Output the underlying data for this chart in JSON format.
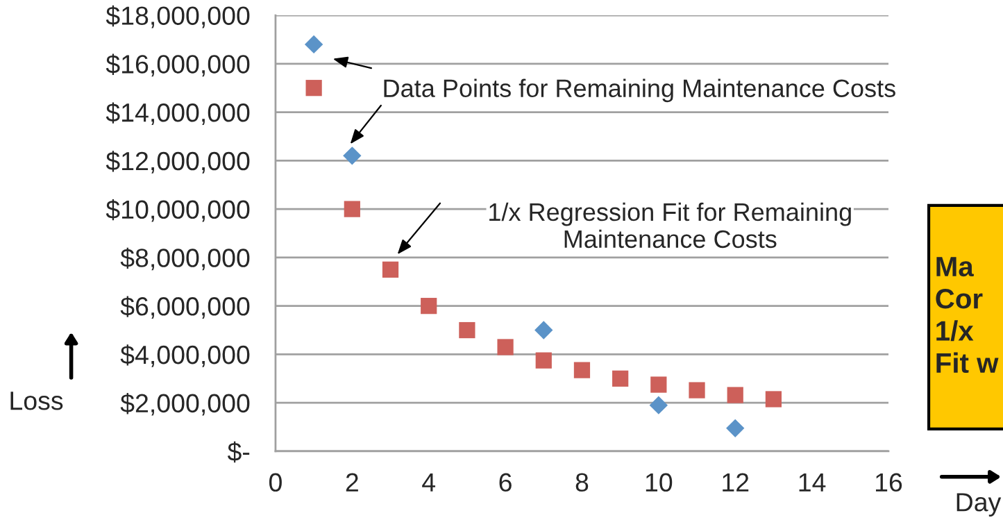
{
  "chart_data": {
    "type": "scatter",
    "xlabel": "Day",
    "ylabel": "Loss",
    "series": [
      {
        "color": "#5b93c8",
        "marker": "diamond",
        "x": [
          1,
          2,
          7,
          10,
          12
        ],
        "values": [
          16800000,
          12200000,
          5000000,
          1900000,
          950000
        ]
      },
      {
        "color": "#cd605a",
        "marker": "square",
        "x": [
          1,
          2,
          3,
          4,
          5,
          6,
          7,
          8,
          9,
          10,
          11,
          12,
          13
        ],
        "values": [
          15000000,
          10000000,
          7500000,
          6000000,
          5000000,
          4300000,
          3750000,
          3350000,
          3000000,
          2750000,
          2520000,
          2320000,
          2150000
        ]
      }
    ],
    "xlim": [
      0,
      16
    ],
    "xticks": [
      0,
      2,
      4,
      6,
      8,
      10,
      12,
      14,
      16
    ],
    "ylim": [
      0,
      18000000
    ],
    "yticks": [
      {
        "value": 0,
        "label": "$-"
      },
      {
        "value": 2000000,
        "label": "$2,000,000"
      },
      {
        "value": 4000000,
        "label": "$4,000,000"
      },
      {
        "value": 6000000,
        "label": "$6,000,000"
      },
      {
        "value": 8000000,
        "label": "$8,000,000"
      },
      {
        "value": 10000000,
        "label": "$10,000,000"
      },
      {
        "value": 12000000,
        "label": "$12,000,000"
      },
      {
        "value": 14000000,
        "label": "$14,000,000"
      },
      {
        "value": 16000000,
        "label": "$16,000,000"
      },
      {
        "value": 18000000,
        "label": "$18,000,000"
      }
    ],
    "grid": "y",
    "annotations": [
      "Data Points for Remaining Maintenance Costs",
      "1/x Regression Fit for Remaining\nMaintenance Costs",
      "Ma\nCor\n1/x\nFit w"
    ]
  }
}
